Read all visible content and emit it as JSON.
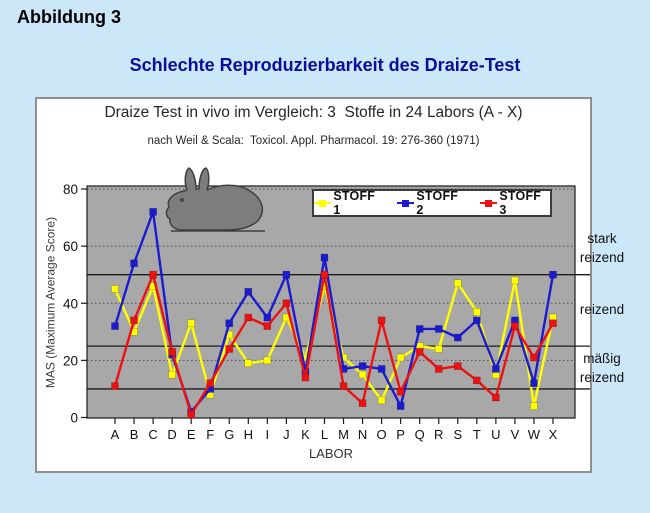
{
  "figure_label": "Abbildung 3",
  "heading": "Schlechte Reproduzierbarkeit des Draize-Test",
  "chart": {
    "title": "Draize Test in vivo im Vergleich: 3  Stoffe in 24 Labors (A - X)",
    "subtitle": "nach Weil & Scala:  Toxicol. Appl. Pharmacol. 19: 276-360 (1971)",
    "x_axis_label": "LABOR",
    "y_axis_label": "MAS (Maximum Average Score)"
  },
  "irritation_labels": {
    "stark": [
      "stark",
      "reizend"
    ],
    "mittel": [
      "reizend"
    ],
    "maessig": [
      "mäßig",
      "reizend"
    ]
  },
  "colors": {
    "page_background": "#CBE7F8",
    "heading_text": "#0D0D9B",
    "panel_background": "#FFFFFF",
    "plot_background": "#A8A8A8",
    "gridline_dotted": "#4d4d4d",
    "threshold_line": "#1c1c1c",
    "rabbit_gray": "#7d7d7d"
  },
  "chart_data": {
    "type": "line",
    "title": "Draize Test in vivo im Vergleich: 3  Stoffe in 24 Labors (A - X)",
    "subtitle": "nach Weil & Scala:  Toxicol. Appl. Pharmacol. 19: 276-360 (1971)",
    "xlabel": "LABOR",
    "ylabel": "MAS (Maximum Average Score)",
    "ylim": [
      0,
      80
    ],
    "yticks": [
      0,
      20,
      40,
      60,
      80
    ],
    "dotted_gridlines": [
      20,
      40,
      60,
      80
    ],
    "threshold_lines": [
      10,
      25,
      50
    ],
    "legend_position": "top",
    "categories": [
      "A",
      "B",
      "C",
      "D",
      "E",
      "F",
      "G",
      "H",
      "I",
      "J",
      "K",
      "L",
      "M",
      "N",
      "O",
      "P",
      "Q",
      "R",
      "S",
      "T",
      "U",
      "V",
      "W",
      "X"
    ],
    "series": [
      {
        "name": "STOFF 1",
        "color": "#FFFF00",
        "values": [
          45,
          30,
          46,
          15,
          33,
          8,
          29,
          19,
          20,
          35,
          21,
          46,
          21,
          15,
          6,
          21,
          25,
          24,
          47,
          37,
          15,
          48,
          4,
          35
        ]
      },
      {
        "name": "STOFF 2",
        "color": "#1B1BD1",
        "values": [
          32,
          54,
          72,
          22,
          2,
          10,
          33,
          44,
          35,
          50,
          16,
          56,
          17,
          18,
          17,
          4,
          31,
          31,
          28,
          34,
          17,
          34,
          12,
          50
        ]
      },
      {
        "name": "STOFF 3",
        "color": "#EE1111",
        "values": [
          11,
          34,
          50,
          23,
          1,
          12,
          24,
          35,
          32,
          40,
          14,
          50,
          11,
          5,
          34,
          9,
          23,
          17,
          18,
          13,
          7,
          32,
          21,
          33
        ]
      }
    ]
  }
}
